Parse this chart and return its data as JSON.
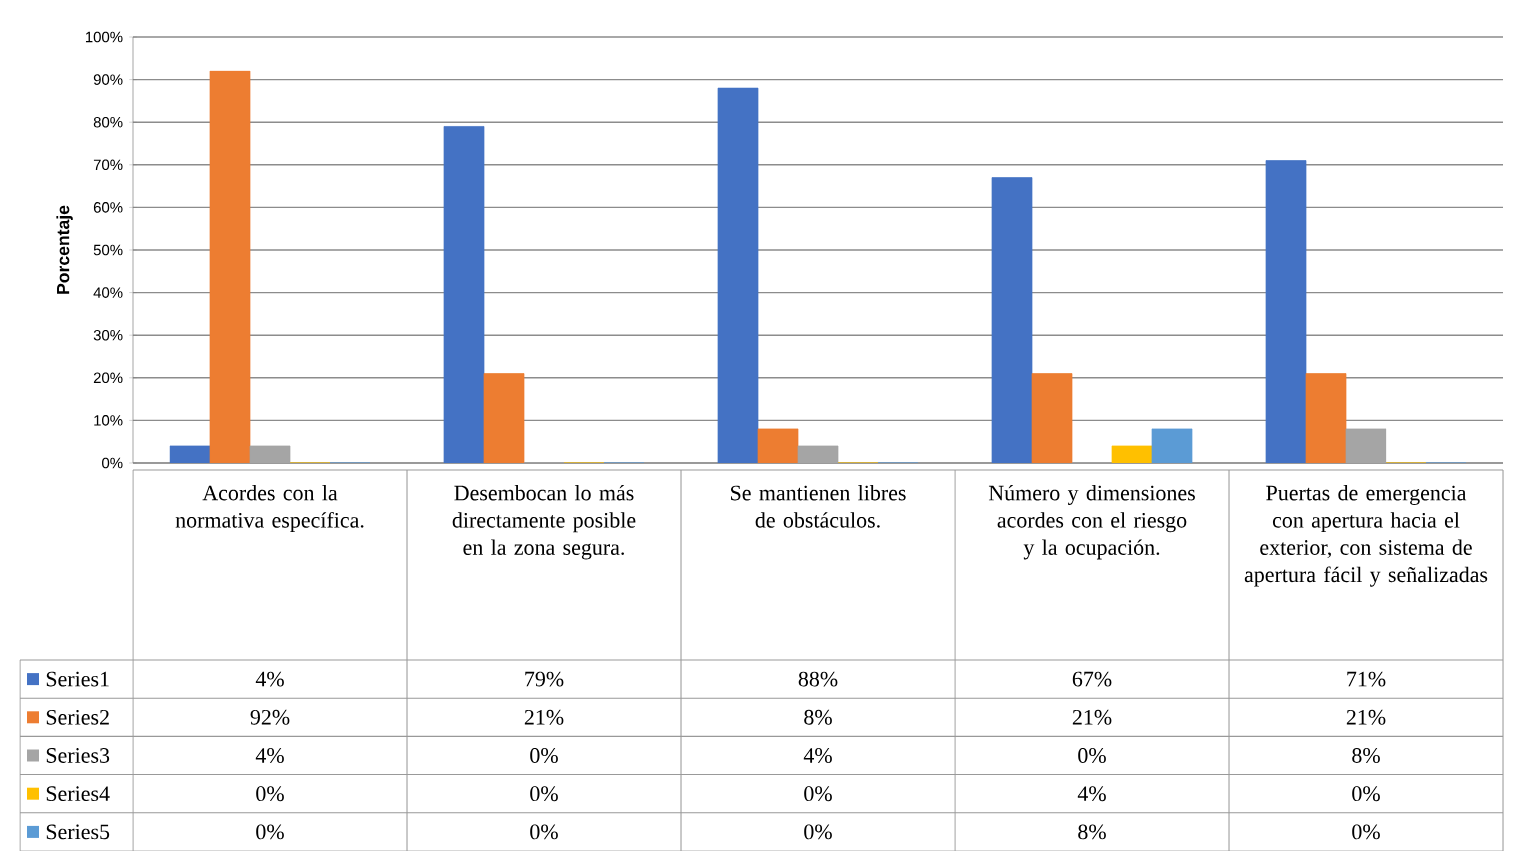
{
  "chart_data": {
    "type": "bar",
    "ylabel": "Porcentaje",
    "categories": [
      "Acordes con la normativa específica.",
      "Desembocan lo más directamente posible en la zona segura.",
      "Se mantienen libres de obstáculos.",
      "Número y dimensiones acordes con el riesgo y la ocupación.",
      "Puertas de emergencia con apertura hacia el exterior, con sistema de apertura fácil y señalizadas"
    ],
    "series": [
      {
        "name": "Series1",
        "color": "#4472c4",
        "values": [
          4,
          79,
          88,
          67,
          71
        ],
        "value_labels": [
          "4%",
          "79%",
          "88%",
          "67%",
          "71%"
        ]
      },
      {
        "name": "Series2",
        "color": "#ed7d31",
        "values": [
          92,
          21,
          8,
          21,
          21
        ],
        "value_labels": [
          "92%",
          "21%",
          "8%",
          "21%",
          "21%"
        ]
      },
      {
        "name": "Series3",
        "color": "#a5a5a5",
        "values": [
          4,
          0,
          4,
          0,
          8
        ],
        "value_labels": [
          "4%",
          "0%",
          "4%",
          "0%",
          "8%"
        ]
      },
      {
        "name": "Series4",
        "color": "#ffc000",
        "values": [
          0,
          0,
          0,
          4,
          0
        ],
        "value_labels": [
          "0%",
          "0%",
          "0%",
          "4%",
          "0%"
        ]
      },
      {
        "name": "Series5",
        "color": "#5b9bd5",
        "values": [
          0,
          0,
          0,
          8,
          0
        ],
        "value_labels": [
          "0%",
          "0%",
          "0%",
          "8%",
          "0%"
        ]
      }
    ],
    "ylim": [
      0,
      100
    ],
    "yticks": [
      {
        "value": 0,
        "label": "0%"
      },
      {
        "value": 10,
        "label": "10%"
      },
      {
        "value": 20,
        "label": "20%"
      },
      {
        "value": 30,
        "label": "30%"
      },
      {
        "value": 40,
        "label": "40%"
      },
      {
        "value": 50,
        "label": "50%"
      },
      {
        "value": 60,
        "label": "60%"
      },
      {
        "value": 70,
        "label": "70%"
      },
      {
        "value": 80,
        "label": "80%"
      },
      {
        "value": 90,
        "label": "90%"
      },
      {
        "value": 100,
        "label": "100%"
      }
    ],
    "grid": "y",
    "legend": "bottom left"
  }
}
